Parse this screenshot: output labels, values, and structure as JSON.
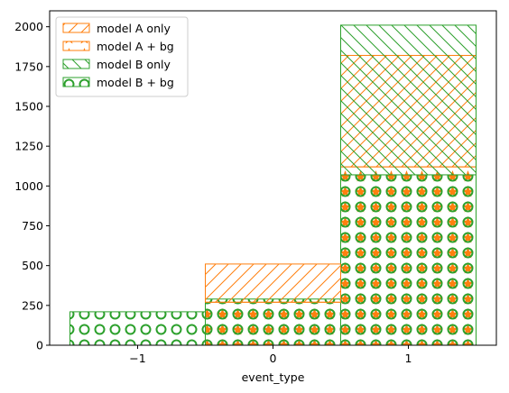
{
  "chart_data": {
    "type": "bar",
    "histtype": "stepfilled-hatched",
    "xlabel": "event_type",
    "ylabel": "",
    "title": "",
    "xlim": [
      -1.65,
      1.65
    ],
    "ylim": [
      0,
      2100
    ],
    "xticks": [
      -1,
      0,
      1
    ],
    "yticks": [
      0,
      250,
      500,
      750,
      1000,
      1250,
      1500,
      1750,
      2000
    ],
    "bins": [
      [
        -1.5,
        -0.5
      ],
      [
        -0.5,
        0.5
      ],
      [
        0.5,
        1.5
      ]
    ],
    "legend_position": "upper-left",
    "series": [
      {
        "name": "model A + bg",
        "values": [
          0,
          270,
          1120
        ],
        "color": "#ff7f0e",
        "hatch": "stars",
        "base": [
          0,
          0,
          0
        ]
      },
      {
        "name": "model B + bg",
        "values": [
          210,
          290,
          1070
        ],
        "color": "#2ca02c",
        "hatch": "circles",
        "base": [
          0,
          0,
          0
        ]
      },
      {
        "name": "model A only",
        "values": [
          0,
          240,
          700
        ],
        "color": "#ff7f0e",
        "hatch": "diagonal-forward",
        "base": [
          0,
          270,
          1120
        ]
      },
      {
        "name": "model B only",
        "values": [
          0,
          0,
          940
        ],
        "color": "#2ca02c",
        "hatch": "diagonal-back",
        "base": [
          0,
          0,
          1070
        ]
      }
    ],
    "legend": [
      "model A only",
      "model A + bg",
      "model B only",
      "model B + bg"
    ]
  }
}
